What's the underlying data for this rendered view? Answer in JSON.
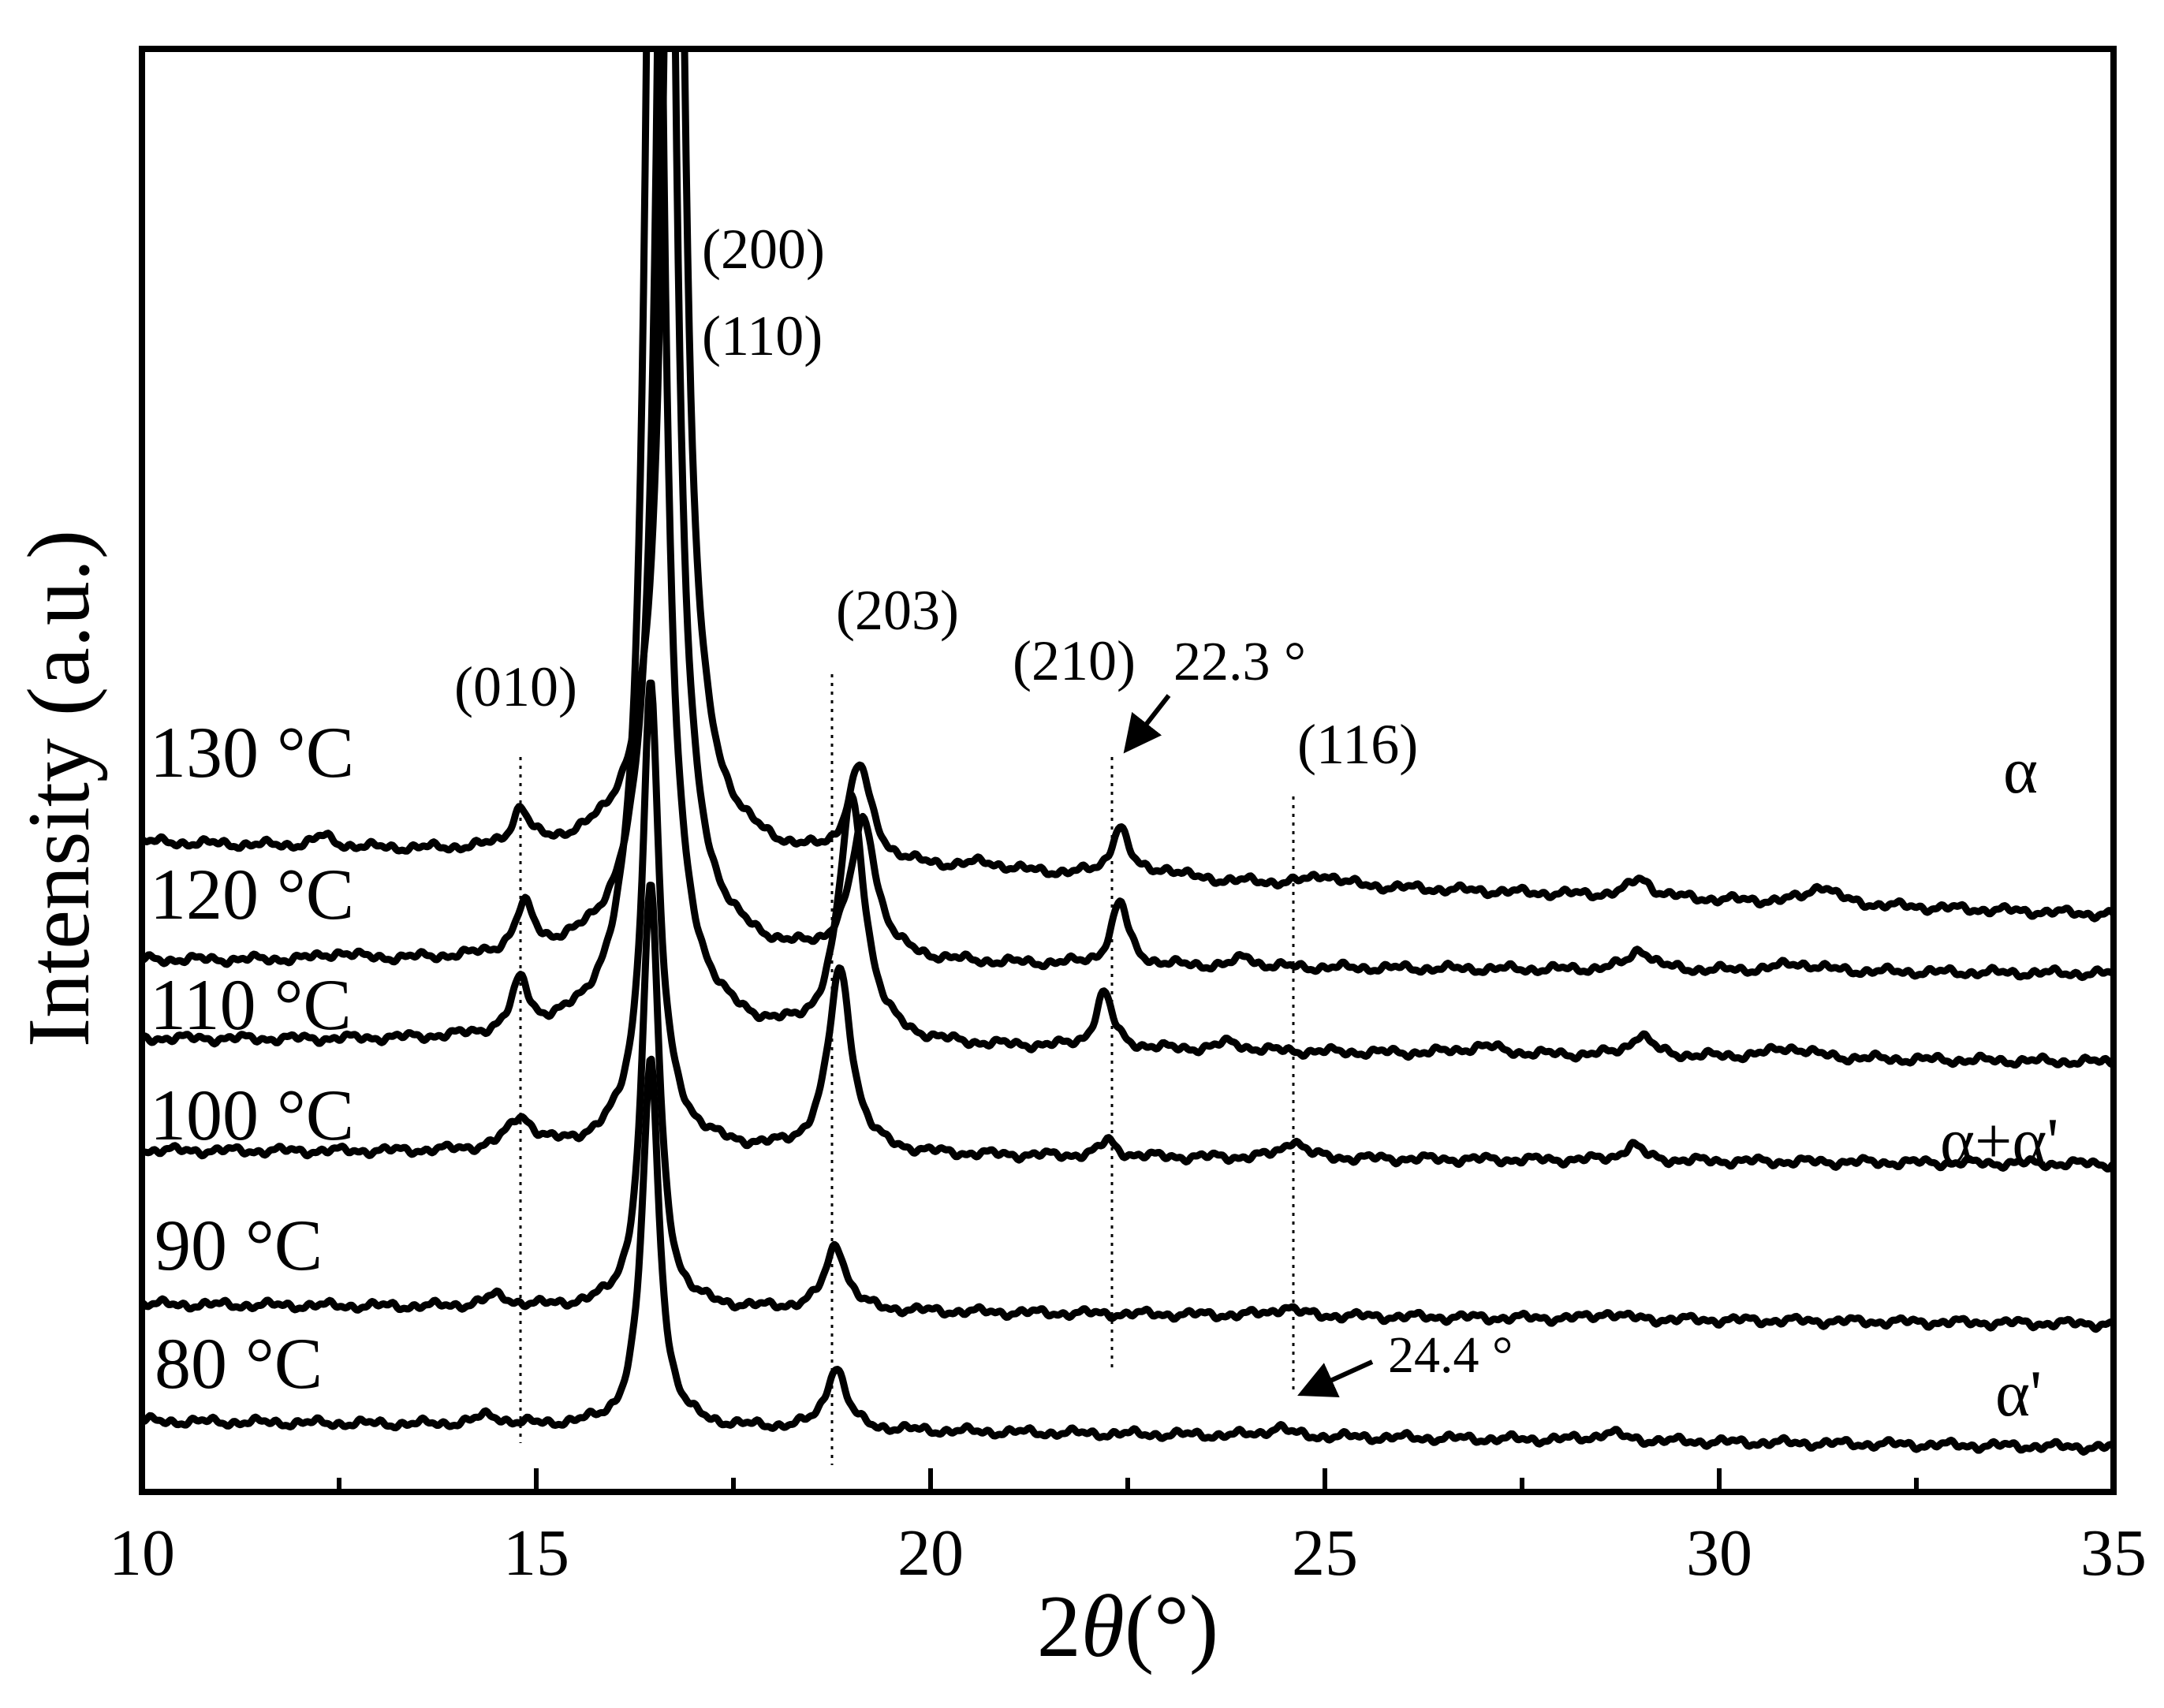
{
  "chart_data": {
    "type": "line",
    "title": "",
    "xlabel_prefix": "2",
    "xlabel_symbol": "θ",
    "xlabel_unit": "(°)",
    "ylabel": "Intensity (a.u.)",
    "xlim": [
      10,
      35
    ],
    "ylim": [
      0,
      11
    ],
    "x_ticks": [
      "10",
      "15",
      "20",
      "25",
      "30",
      "35"
    ],
    "x_tick_values": [
      10,
      15,
      20,
      25,
      30,
      35
    ],
    "y_ticks_shown": false,
    "series": [
      {
        "name": "130 °C",
        "label": "130 °C",
        "baseline": 4.95,
        "slope": -0.022,
        "peaks": [
          [
            12.3,
            0.08,
            0.15
          ],
          [
            14.8,
            0.28,
            0.13
          ],
          [
            16.75,
            12.0,
            0.12
          ],
          [
            16.75,
            0.7,
            0.55
          ],
          [
            19.1,
            0.72,
            0.18
          ],
          [
            20.7,
            0.05,
            0.3
          ],
          [
            22.4,
            0.38,
            0.13
          ],
          [
            23.0,
            0.06,
            0.2
          ],
          [
            25.0,
            0.08,
            0.2
          ],
          [
            29.0,
            0.14,
            0.17
          ],
          [
            31.3,
            0.14,
            0.2
          ]
        ]
      },
      {
        "name": "120 °C",
        "label": "120 °C",
        "baseline": 4.05,
        "slope": -0.004,
        "peaks": [
          [
            12.5,
            0.05,
            0.2
          ],
          [
            14.85,
            0.35,
            0.14
          ],
          [
            16.65,
            12.0,
            0.12
          ],
          [
            16.65,
            0.7,
            0.55
          ],
          [
            19.15,
            1.05,
            0.2
          ],
          [
            22.4,
            0.48,
            0.13
          ],
          [
            24.0,
            0.08,
            0.12
          ],
          [
            29.0,
            0.16,
            0.17
          ],
          [
            31.0,
            0.06,
            0.3
          ]
        ]
      },
      {
        "name": "110 °C",
        "label": "110 °C",
        "baseline": 3.45,
        "slope": -0.007,
        "peaks": [
          [
            14.8,
            0.38,
            0.13
          ],
          [
            16.5,
            12.0,
            0.12
          ],
          [
            16.5,
            0.7,
            0.55
          ],
          [
            19.0,
            1.85,
            0.2
          ],
          [
            22.2,
            0.42,
            0.13
          ],
          [
            23.8,
            0.06,
            0.2
          ],
          [
            27.0,
            0.06,
            0.3
          ],
          [
            29.0,
            0.16,
            0.17
          ],
          [
            30.9,
            0.08,
            0.3
          ]
        ]
      },
      {
        "name": "100 °C",
        "label": "100 °C",
        "baseline": 2.6,
        "slope": -0.004,
        "peaks": [
          [
            14.8,
            0.24,
            0.2
          ],
          [
            16.45,
            3.2,
            0.12
          ],
          [
            16.45,
            0.4,
            0.45
          ],
          [
            18.85,
            1.4,
            0.18
          ],
          [
            22.25,
            0.12,
            0.12
          ],
          [
            24.6,
            0.14,
            0.15
          ],
          [
            28.9,
            0.12,
            0.15
          ]
        ]
      },
      {
        "name": "90 °C",
        "label": "90 °C",
        "baseline": 1.43,
        "slope": -0.006,
        "peaks": [
          [
            14.5,
            0.08,
            0.2
          ],
          [
            16.45,
            3.25,
            0.13
          ],
          [
            18.8,
            0.5,
            0.16
          ],
          [
            24.5,
            0.07,
            0.15
          ],
          [
            28.6,
            0.05,
            0.15
          ]
        ]
      },
      {
        "name": "80 °C",
        "label": "80 °C",
        "baseline": 0.54,
        "slope": -0.008,
        "peaks": [
          [
            14.4,
            0.07,
            0.2
          ],
          [
            16.45,
            2.8,
            0.13
          ],
          [
            18.8,
            0.48,
            0.15
          ],
          [
            24.4,
            0.07,
            0.15
          ],
          [
            28.6,
            0.06,
            0.2
          ]
        ]
      }
    ],
    "annotations": {
      "planes": [
        "(200)",
        "(110)",
        "(203)",
        "(010)",
        "(210)",
        "(116)"
      ],
      "peak_22": "22.3 °",
      "peak_24": "24.4 °",
      "phase_alpha": "α",
      "phase_mixed": "α+α'",
      "phase_alpha_prime": "α'"
    },
    "reference_lines_x": [
      14.8,
      18.75,
      22.3,
      24.6
    ]
  }
}
